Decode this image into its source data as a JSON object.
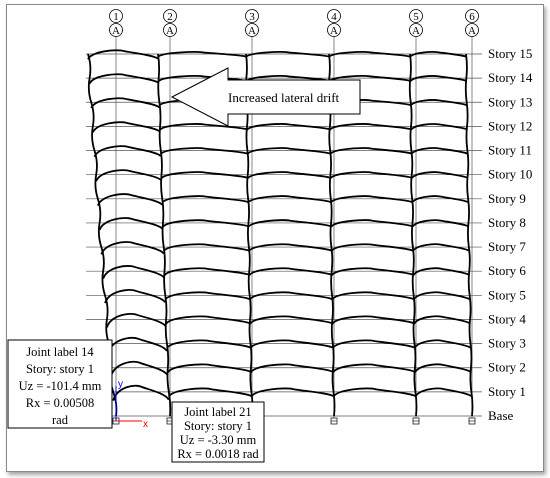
{
  "grid_lines": [
    {
      "number": "1",
      "letter": "A"
    },
    {
      "number": "2",
      "letter": "A"
    },
    {
      "number": "3",
      "letter": "A"
    },
    {
      "number": "4",
      "letter": "A"
    },
    {
      "number": "5",
      "letter": "A"
    },
    {
      "number": "6",
      "letter": "A"
    }
  ],
  "story_labels": [
    "Story 15",
    "Story 14",
    "Story 13",
    "Story 12",
    "Story 11",
    "Story 10",
    "Story 9",
    "Story 8",
    "Story 7",
    "Story 6",
    "Story 5",
    "Story 4",
    "Story 3",
    "Story 2",
    "Story 1",
    "Base"
  ],
  "arrow_label": "Increased lateral drift",
  "joint_14": {
    "lines": [
      "Joint label 14",
      "Story: story 1",
      "Uz = -101.4 mm",
      "Rx = 0.00508",
      "rad"
    ]
  },
  "joint_21": {
    "lines": [
      "Joint label 21",
      "Story: story 1",
      "Uz = -3.30 mm",
      "Rx = 0.0018 rad"
    ]
  },
  "axes": {
    "x": "x",
    "y": "y"
  },
  "colors": {
    "frame": "#000000",
    "gridline": "#555555",
    "axis_x": "#ff0000",
    "axis_y": "#0000ff"
  }
}
